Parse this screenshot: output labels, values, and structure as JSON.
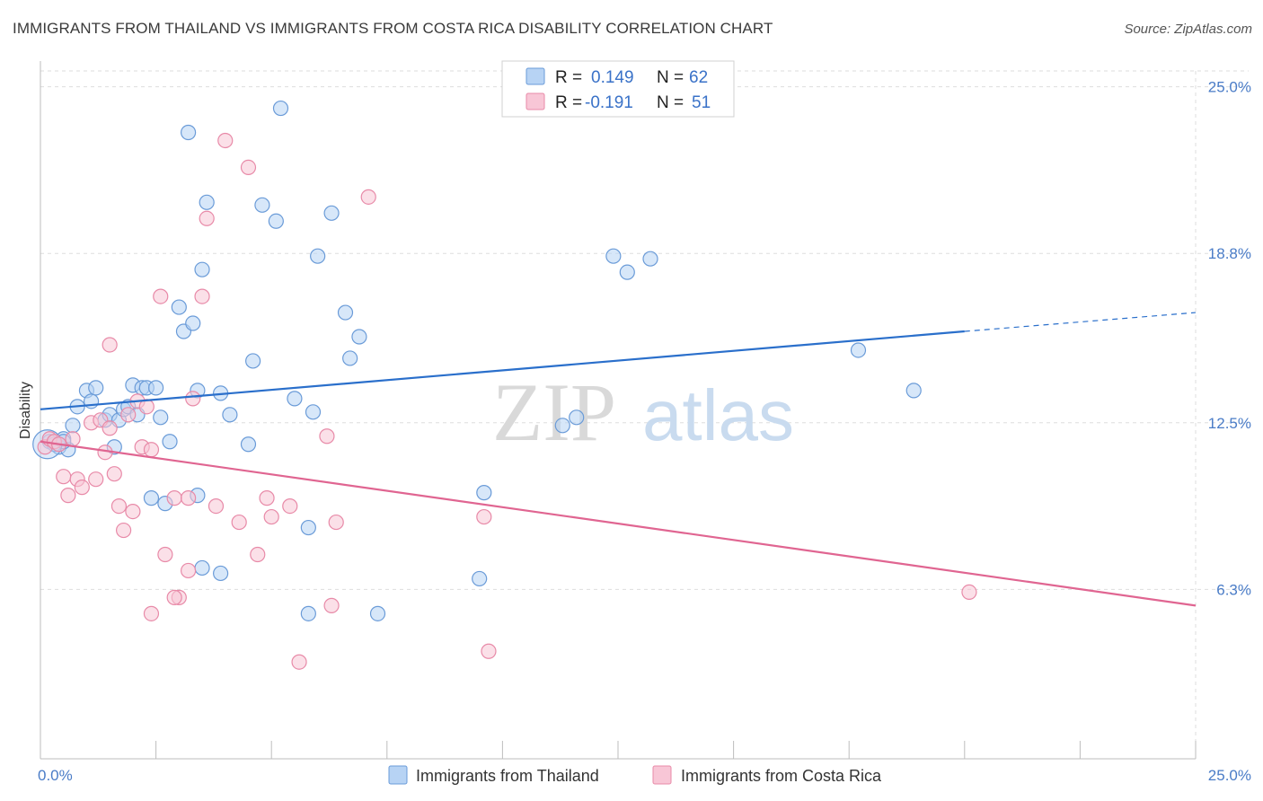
{
  "title": "IMMIGRANTS FROM THAILAND VS IMMIGRANTS FROM COSTA RICA DISABILITY CORRELATION CHART",
  "source": "Source: ZipAtlas.com",
  "watermark": {
    "zip": "ZIP",
    "atlas": "atlas"
  },
  "colors": {
    "thailand_fill": "#b7d3f4",
    "thailand_stroke": "#6a9bd8",
    "thailand_line": "#2a6fcb",
    "costarica_fill": "#f8c6d6",
    "costarica_stroke": "#e88aa8",
    "costarica_line": "#e06591",
    "tick": "#4a7cc7",
    "grid": "#dddddd"
  },
  "legend": {
    "r_label": "R =",
    "n_label": "N =",
    "items": [
      {
        "r": "0.149",
        "n": "62"
      },
      {
        "r": "-0.191",
        "n": "51"
      }
    ]
  },
  "chart_data": {
    "type": "scatter",
    "title": "IMMIGRANTS FROM THAILAND VS IMMIGRANTS FROM COSTA RICA DISABILITY CORRELATION CHART",
    "xlabel": "",
    "ylabel": "Disability",
    "xlim": [
      0,
      25
    ],
    "ylim": [
      0,
      26
    ],
    "x_tick_labels": [
      "0.0%",
      "25.0%"
    ],
    "y_ticks": [
      6.3,
      12.5,
      18.8,
      25.0
    ],
    "y_tick_labels": [
      "6.3%",
      "12.5%",
      "18.8%",
      "25.0%"
    ],
    "grid": true,
    "legend_position": "top-center",
    "series": [
      {
        "name": "Immigrants from Thailand",
        "r": 0.149,
        "n": 62,
        "trend": {
          "x0": 0,
          "y0": 13.0,
          "x1": 20,
          "y1": 15.9,
          "dash_x1": 25,
          "dash_y1": 16.6
        },
        "points": [
          [
            0.2,
            11.8
          ],
          [
            0.4,
            11.6
          ],
          [
            0.5,
            11.9
          ],
          [
            0.6,
            11.5
          ],
          [
            0.7,
            12.4
          ],
          [
            0.8,
            13.1
          ],
          [
            1.0,
            13.7
          ],
          [
            1.1,
            13.3
          ],
          [
            1.2,
            13.8
          ],
          [
            1.4,
            12.6
          ],
          [
            1.5,
            12.8
          ],
          [
            1.6,
            11.6
          ],
          [
            1.7,
            12.6
          ],
          [
            1.8,
            13.0
          ],
          [
            1.9,
            13.1
          ],
          [
            2.0,
            13.9
          ],
          [
            2.2,
            13.8
          ],
          [
            2.3,
            13.8
          ],
          [
            2.1,
            12.8
          ],
          [
            2.5,
            13.8
          ],
          [
            2.6,
            12.7
          ],
          [
            2.4,
            9.7
          ],
          [
            2.8,
            11.8
          ],
          [
            2.7,
            9.5
          ],
          [
            3.2,
            23.3
          ],
          [
            3.0,
            16.8
          ],
          [
            3.1,
            15.9
          ],
          [
            3.3,
            16.2
          ],
          [
            3.4,
            13.7
          ],
          [
            3.5,
            18.2
          ],
          [
            3.6,
            20.7
          ],
          [
            3.9,
            13.6
          ],
          [
            4.1,
            12.8
          ],
          [
            4.5,
            11.7
          ],
          [
            4.6,
            14.8
          ],
          [
            4.8,
            20.6
          ],
          [
            5.1,
            20.0
          ],
          [
            5.2,
            24.2
          ],
          [
            5.5,
            13.4
          ],
          [
            5.9,
            12.9
          ],
          [
            6.0,
            18.7
          ],
          [
            6.3,
            20.3
          ],
          [
            6.6,
            16.6
          ],
          [
            6.7,
            14.9
          ],
          [
            6.9,
            15.7
          ],
          [
            3.4,
            9.8
          ],
          [
            3.5,
            7.1
          ],
          [
            3.9,
            6.9
          ],
          [
            5.8,
            5.4
          ],
          [
            7.3,
            5.4
          ],
          [
            5.8,
            8.6
          ],
          [
            9.5,
            6.7
          ],
          [
            9.6,
            9.9
          ],
          [
            11.3,
            12.4
          ],
          [
            11.6,
            12.7
          ],
          [
            12.4,
            18.7
          ],
          [
            12.7,
            18.1
          ],
          [
            13.2,
            18.6
          ],
          [
            17.7,
            15.2
          ],
          [
            18.9,
            13.7
          ],
          [
            0.3,
            11.7
          ],
          [
            0.5,
            11.8
          ]
        ]
      },
      {
        "name": "Immigrants from Costa Rica",
        "r": -0.191,
        "n": 51,
        "trend": {
          "x0": 0,
          "y0": 11.8,
          "x1": 25,
          "y1": 5.7
        },
        "points": [
          [
            0.1,
            11.6
          ],
          [
            0.2,
            11.9
          ],
          [
            0.3,
            11.8
          ],
          [
            0.4,
            11.7
          ],
          [
            0.5,
            10.5
          ],
          [
            0.6,
            9.8
          ],
          [
            0.7,
            11.9
          ],
          [
            0.8,
            10.4
          ],
          [
            0.9,
            10.1
          ],
          [
            1.1,
            12.5
          ],
          [
            1.2,
            10.4
          ],
          [
            1.3,
            12.6
          ],
          [
            1.4,
            11.4
          ],
          [
            1.5,
            15.4
          ],
          [
            1.6,
            10.6
          ],
          [
            1.7,
            9.4
          ],
          [
            1.8,
            8.5
          ],
          [
            1.9,
            12.8
          ],
          [
            2.0,
            9.2
          ],
          [
            2.1,
            13.3
          ],
          [
            2.2,
            11.6
          ],
          [
            2.3,
            13.1
          ],
          [
            2.4,
            11.5
          ],
          [
            2.6,
            17.2
          ],
          [
            2.7,
            7.6
          ],
          [
            2.9,
            9.7
          ],
          [
            3.0,
            6.0
          ],
          [
            3.2,
            7.0
          ],
          [
            3.3,
            13.4
          ],
          [
            3.5,
            17.2
          ],
          [
            3.6,
            20.1
          ],
          [
            3.8,
            9.4
          ],
          [
            4.0,
            23.0
          ],
          [
            4.3,
            8.8
          ],
          [
            4.5,
            22.0
          ],
          [
            4.7,
            7.6
          ],
          [
            4.9,
            9.7
          ],
          [
            5.0,
            9.0
          ],
          [
            5.4,
            9.4
          ],
          [
            5.6,
            3.6
          ],
          [
            6.2,
            12.0
          ],
          [
            6.3,
            5.7
          ],
          [
            6.4,
            8.8
          ],
          [
            7.1,
            20.9
          ],
          [
            9.6,
            9.0
          ],
          [
            9.7,
            4.0
          ],
          [
            2.9,
            6.0
          ],
          [
            2.4,
            5.4
          ],
          [
            20.1,
            6.2
          ],
          [
            1.5,
            12.3
          ],
          [
            3.2,
            9.7
          ]
        ]
      }
    ]
  }
}
